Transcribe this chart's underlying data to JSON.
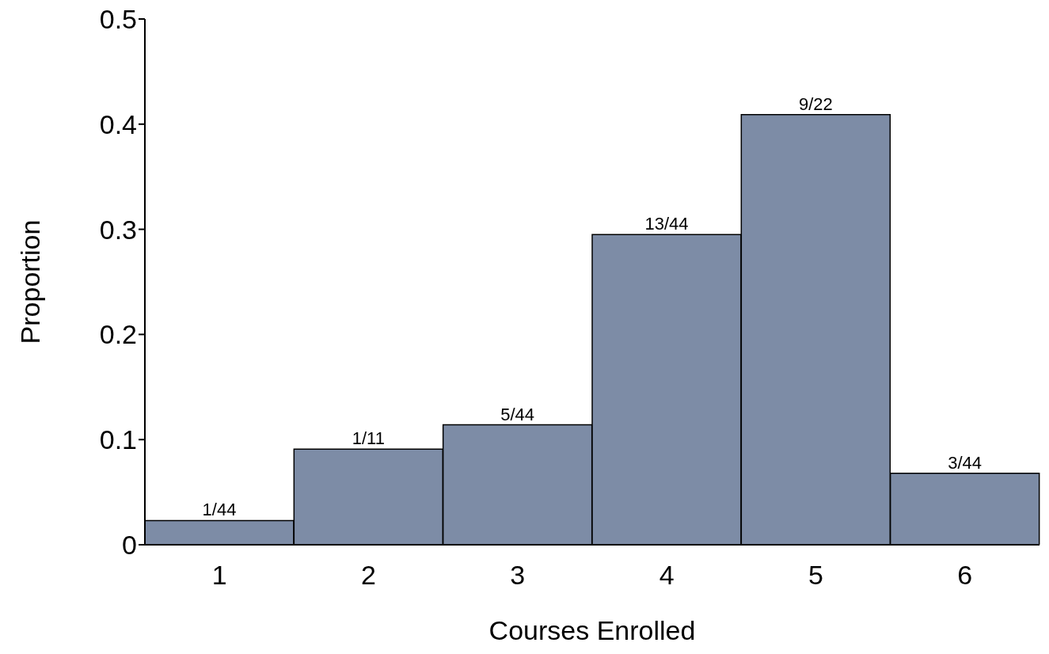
{
  "chart_data": {
    "type": "bar",
    "categories": [
      "1",
      "2",
      "3",
      "4",
      "5",
      "6"
    ],
    "values": [
      0.023,
      0.091,
      0.114,
      0.295,
      0.409,
      0.068
    ],
    "value_labels": [
      "1/44",
      "1/11",
      "5/44",
      "13/44",
      "9/22",
      "3/44"
    ],
    "color": "#7d8ca6",
    "xlabel": "Courses Enrolled",
    "ylabel": "Proportion",
    "ylim": [
      0,
      0.5
    ],
    "yticks": [
      0,
      0.1,
      0.2,
      0.3,
      0.4,
      0.5
    ],
    "grid": false,
    "legend": false
  }
}
